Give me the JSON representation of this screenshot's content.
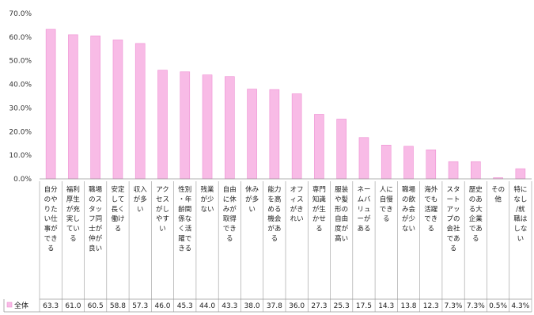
{
  "chart_data": {
    "type": "bar",
    "ylim": [
      0,
      70
    ],
    "yticks": [
      "0.0%",
      "10.0%",
      "20.0%",
      "30.0%",
      "40.0%",
      "50.0%",
      "60.0%",
      "70.0%"
    ],
    "grid": false,
    "legend_position": "bottom-left",
    "bar_color": "#f8bbe6",
    "bar_edge_color": "#ee8fd2",
    "categories": [
      "自分のやりたい仕事ができる",
      "福利厚生が充実している",
      "職場のスタッフ同士が仲が良い",
      "安定して長く働ける",
      "収入が多い",
      "アクセスがしやすい",
      "性別・年齢関係なく活躍できる",
      "残業が少ない",
      "自由に休みが取得できる",
      "休みが多い",
      "能力を高める機会がある",
      "オフィスがきれい",
      "専門知識が生かせる",
      "服装や髪形の自由度が高い",
      "ネームバリューがある",
      "人に自慢できる",
      "職場の飲み会が少ない",
      "海外でも活躍できる",
      "スタートアップの会社である",
      "歴史のある大企業である",
      "その他",
      "特になし/就職はしない"
    ],
    "series": [
      {
        "name": "全体",
        "values": [
          63.3,
          61.0,
          60.5,
          58.8,
          57.3,
          46.0,
          45.3,
          44.0,
          43.3,
          38.0,
          37.8,
          36.0,
          27.3,
          25.3,
          17.5,
          14.3,
          13.8,
          12.3,
          7.3,
          7.3,
          0.5,
          4.3
        ],
        "labels": [
          "63.3",
          "61.0",
          "60.5",
          "58.8",
          "57.3",
          "46.0",
          "45.3",
          "44.0",
          "43.3",
          "38.0",
          "37.8",
          "36.0",
          "27.3",
          "25.3",
          "17.5",
          "14.3",
          "13.8",
          "12.3",
          "7.3%",
          "7.3%",
          "0.5%",
          "4.3%"
        ]
      }
    ]
  }
}
